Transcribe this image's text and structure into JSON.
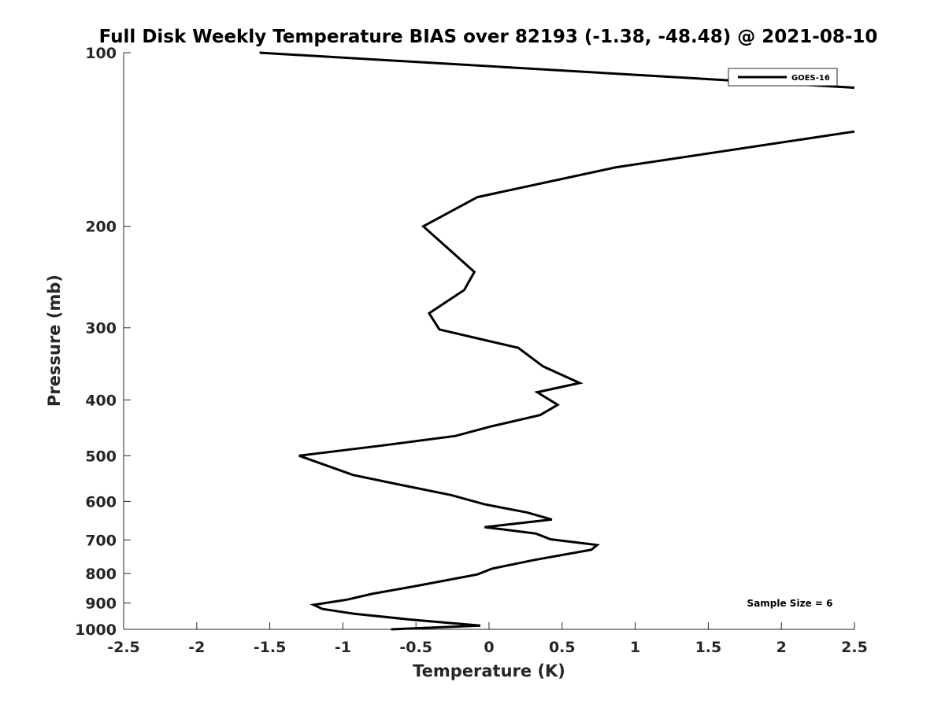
{
  "chart_data": {
    "type": "line",
    "title": "Full Disk Weekly Temperature BIAS over 82193 (-1.38, -48.48) @ 2021-08-10",
    "xlabel": "Temperature (K)",
    "ylabel": "Pressure (mb)",
    "xlim": [
      -2.5,
      2.5
    ],
    "ylim": [
      100,
      1000
    ],
    "yscale": "log",
    "y_reversed": true,
    "grid": false,
    "legend_position": "top-right",
    "xticks": [
      -2.5,
      -2,
      -1.5,
      -1,
      -0.5,
      0,
      0.5,
      1,
      1.5,
      2,
      2.5
    ],
    "xtick_labels": [
      "-2.5",
      "-2",
      "-1.5",
      "-1",
      "-0.5",
      "0",
      "0.5",
      "1",
      "1.5",
      "2",
      "2.5"
    ],
    "yticks": [
      100,
      200,
      300,
      400,
      500,
      600,
      700,
      800,
      900,
      1000
    ],
    "ytick_labels": [
      "100",
      "200",
      "300",
      "400",
      "500",
      "600",
      "700",
      "800",
      "900",
      "1000"
    ],
    "annotation": "Sample Size = 6",
    "series": [
      {
        "name": "GOES-16",
        "color": "#000000",
        "segments": [
          [
            {
              "x": -1.57,
              "p": 100
            },
            {
              "x": 2.5,
              "p": 115
            }
          ],
          [
            {
              "x": 2.5,
              "p": 137
            },
            {
              "x": 0.87,
              "p": 158
            },
            {
              "x": -0.08,
              "p": 178
            },
            {
              "x": -0.45,
              "p": 200
            },
            {
              "x": -0.1,
              "p": 240
            },
            {
              "x": -0.17,
              "p": 258
            },
            {
              "x": -0.41,
              "p": 283
            },
            {
              "x": -0.34,
              "p": 302
            },
            {
              "x": 0.2,
              "p": 325
            },
            {
              "x": 0.37,
              "p": 350
            },
            {
              "x": 0.62,
              "p": 374
            },
            {
              "x": 0.33,
              "p": 388
            },
            {
              "x": 0.47,
              "p": 408
            },
            {
              "x": 0.35,
              "p": 425
            },
            {
              "x": 0.01,
              "p": 445
            },
            {
              "x": -0.23,
              "p": 462
            },
            {
              "x": -0.73,
              "p": 480
            },
            {
              "x": -1.3,
              "p": 500
            },
            {
              "x": -0.93,
              "p": 540
            },
            {
              "x": -0.63,
              "p": 560
            },
            {
              "x": -0.26,
              "p": 585
            },
            {
              "x": -0.03,
              "p": 607
            },
            {
              "x": 0.26,
              "p": 627
            },
            {
              "x": 0.43,
              "p": 645
            },
            {
              "x": -0.03,
              "p": 665
            },
            {
              "x": 0.32,
              "p": 682
            },
            {
              "x": 0.42,
              "p": 698
            },
            {
              "x": 0.74,
              "p": 714
            },
            {
              "x": 0.7,
              "p": 728
            },
            {
              "x": 0.31,
              "p": 758
            },
            {
              "x": 0.02,
              "p": 785
            },
            {
              "x": -0.08,
              "p": 803
            },
            {
              "x": -0.52,
              "p": 843
            },
            {
              "x": -0.8,
              "p": 868
            },
            {
              "x": -0.97,
              "p": 888
            },
            {
              "x": -1.2,
              "p": 907
            },
            {
              "x": -1.14,
              "p": 922
            },
            {
              "x": -0.92,
              "p": 940
            },
            {
              "x": -0.53,
              "p": 962
            },
            {
              "x": -0.06,
              "p": 985
            },
            {
              "x": -0.67,
              "p": 1000
            }
          ]
        ]
      }
    ]
  }
}
